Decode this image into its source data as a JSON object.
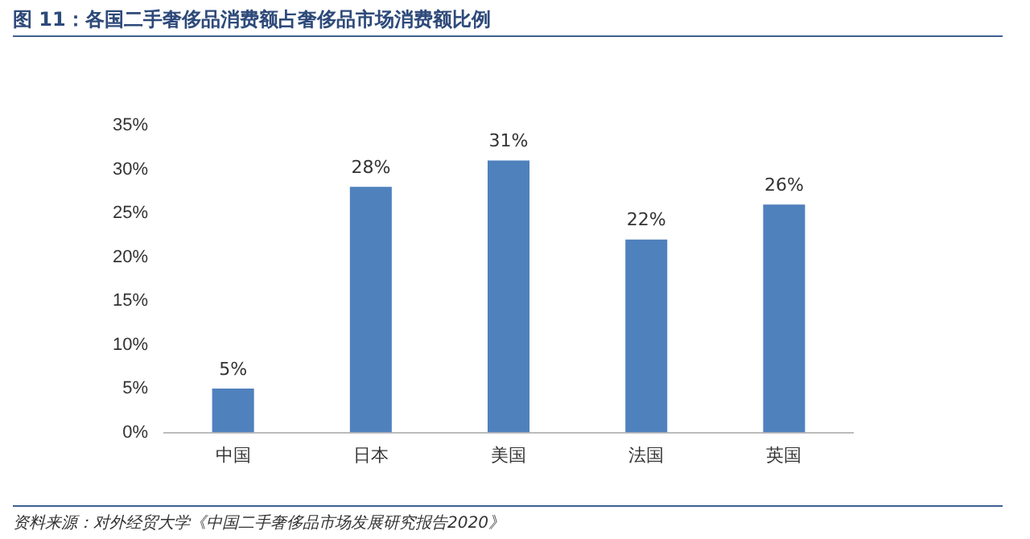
{
  "chart_data": {
    "type": "bar",
    "title": "图 11：各国二手奢侈品消费额占奢侈品市场消费额比例",
    "categories": [
      "中国",
      "日本",
      "美国",
      "法国",
      "英国"
    ],
    "values": [
      5,
      28,
      31,
      22,
      26
    ],
    "value_labels": [
      "5%",
      "28%",
      "31%",
      "22%",
      "26%"
    ],
    "color": "#4f81bd",
    "ylim": [
      0,
      35
    ],
    "yticks": [
      {
        "value": 0,
        "label": "0%"
      },
      {
        "value": 5,
        "label": "5%"
      },
      {
        "value": 10,
        "label": "10%"
      },
      {
        "value": 15,
        "label": "15%"
      },
      {
        "value": 20,
        "label": "20%"
      },
      {
        "value": 25,
        "label": "25%"
      },
      {
        "value": 30,
        "label": "30%"
      },
      {
        "value": 35,
        "label": "35%"
      }
    ],
    "grid": false,
    "annotations": [
      "资料来源：对外经贸大学《中国二手奢侈品市场发展研究报告2020》"
    ]
  }
}
